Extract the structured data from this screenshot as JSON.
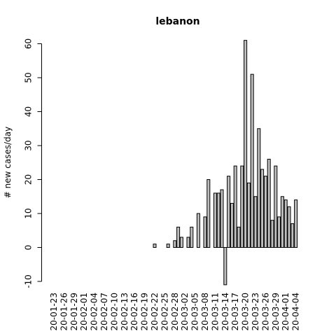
{
  "chart_data": {
    "type": "bar",
    "title": "lebanon",
    "xlabel": "",
    "ylabel": "# new cases/day",
    "ylim": [
      -10,
      60
    ],
    "y_ticks": [
      -10,
      0,
      10,
      20,
      30,
      40,
      50,
      60
    ],
    "x_tick_labels": [
      "20-01-23",
      "20-01-26",
      "20-01-29",
      "20-02-01",
      "20-02-04",
      "20-02-07",
      "20-02-10",
      "20-02-13",
      "20-02-16",
      "20-02-19",
      "20-02-22",
      "20-02-25",
      "20-02-28",
      "20-03-02",
      "20-03-05",
      "20-03-08",
      "20-03-11",
      "20-03-14",
      "20-03-17",
      "20-03-20",
      "20-03-23",
      "20-03-26",
      "20-03-29",
      "20-04-01",
      "20-04-04"
    ],
    "x_tick_label_step": 3,
    "values": [
      0,
      0,
      0,
      0,
      0,
      0,
      0,
      0,
      0,
      0,
      0,
      0,
      0,
      0,
      0,
      0,
      0,
      0,
      0,
      0,
      0,
      0,
      0,
      0,
      0,
      0,
      0,
      0,
      0,
      0,
      1,
      0,
      0,
      0,
      1,
      0,
      2,
      6,
      3,
      0,
      3,
      6,
      0,
      10,
      0,
      9,
      20,
      0,
      16,
      16,
      17,
      -11,
      21,
      13,
      24,
      6,
      24,
      61,
      19,
      51,
      15,
      35,
      23,
      21,
      26,
      8,
      24,
      9,
      15,
      14,
      12,
      7,
      14
    ],
    "grid": false,
    "legend": "none"
  }
}
